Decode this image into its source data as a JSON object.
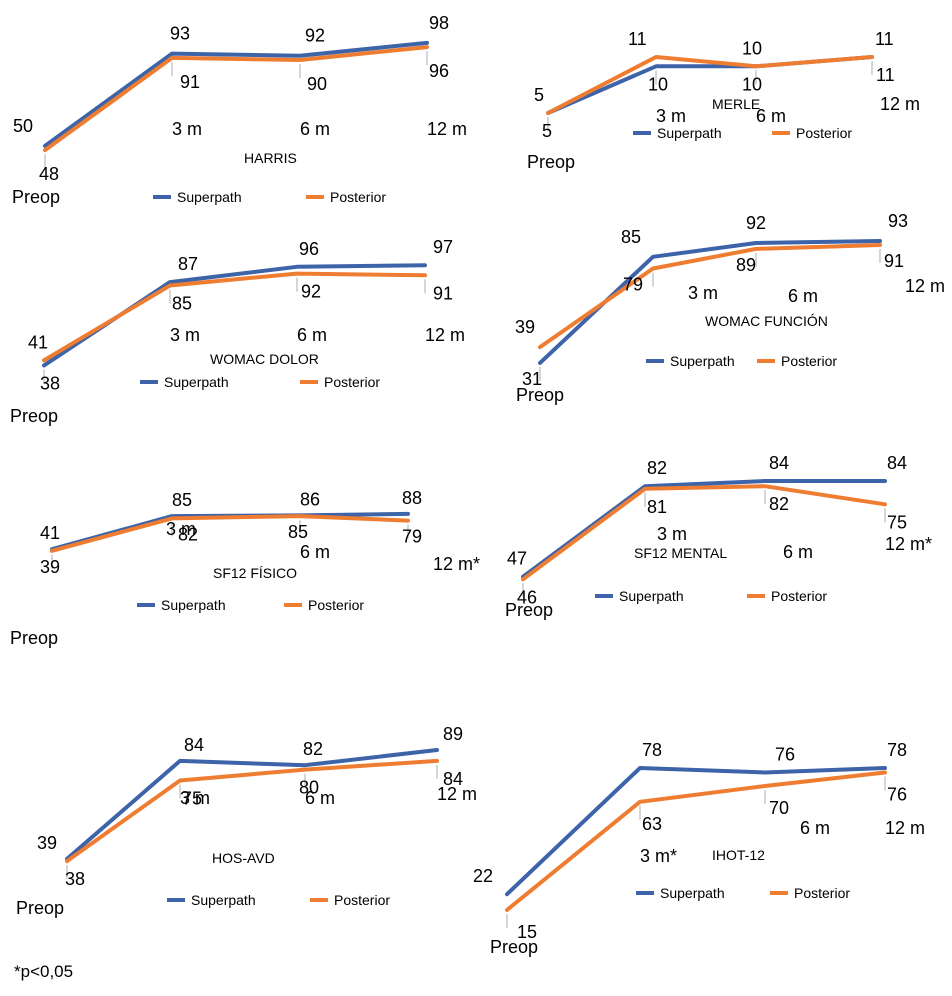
{
  "colors": {
    "superpath": "#3d63a8",
    "posterior": "#ef7d31",
    "text": "#000000",
    "tick": "#c8c8c8"
  },
  "footnote": "*p<0,05",
  "chart_data": [
    {
      "type": "line",
      "title": "HARRIS",
      "categories": [
        "Preop",
        "3 m",
        "6 m",
        "12 m"
      ],
      "series": [
        {
          "name": "Superpath",
          "values": [
            50,
            93,
            92,
            98
          ]
        },
        {
          "name": "Posterior",
          "values": [
            48,
            91,
            90,
            96
          ]
        }
      ],
      "legend": "bottom"
    },
    {
      "type": "line",
      "title": "MERLE",
      "categories": [
        "Preop",
        "3 m",
        "6 m",
        "12 m"
      ],
      "series": [
        {
          "name": "Superpath",
          "values": [
            5,
            10,
            10,
            11
          ]
        },
        {
          "name": "Posterior",
          "values": [
            5,
            11,
            10,
            11
          ]
        }
      ],
      "legend": "bottom"
    },
    {
      "type": "line",
      "title": "WOMAC DOLOR",
      "categories": [
        "Preop",
        "3 m",
        "6 m",
        "12 m"
      ],
      "series": [
        {
          "name": "Superpath",
          "values": [
            38,
            87,
            96,
            97
          ]
        },
        {
          "name": "Posterior",
          "values": [
            41,
            85,
            92,
            91
          ]
        }
      ],
      "legend": "bottom"
    },
    {
      "type": "line",
      "title": "WOMAC FUNCIÓN",
      "categories": [
        "Preop",
        "3 m",
        "6 m",
        "12 m"
      ],
      "series": [
        {
          "name": "Superpath",
          "values": [
            31,
            85,
            92,
            93
          ]
        },
        {
          "name": "Posterior",
          "values": [
            39,
            79,
            89,
            91
          ]
        }
      ],
      "legend": "bottom"
    },
    {
      "type": "line",
      "title": "SF12 FÍSICO",
      "categories": [
        "Preop",
        "3 m",
        "6 m",
        "12 m*"
      ],
      "series": [
        {
          "name": "Superpath",
          "values": [
            41,
            85,
            86,
            88
          ]
        },
        {
          "name": "Posterior",
          "values": [
            39,
            82,
            85,
            79
          ]
        }
      ],
      "legend": "bottom"
    },
    {
      "type": "line",
      "title": "SF12 MENTAL",
      "categories": [
        "Preop",
        "3 m",
        "6 m",
        "12 m*"
      ],
      "series": [
        {
          "name": "Superpath",
          "values": [
            47,
            82,
            84,
            84
          ]
        },
        {
          "name": "Posterior",
          "values": [
            46,
            81,
            82,
            75
          ]
        }
      ],
      "legend": "bottom"
    },
    {
      "type": "line",
      "title": "HOS-AVD",
      "categories": [
        "Preop",
        "3 m",
        "6 m",
        "12 m"
      ],
      "series": [
        {
          "name": "Superpath",
          "values": [
            39,
            84,
            82,
            89
          ]
        },
        {
          "name": "Posterior",
          "values": [
            38,
            75,
            80,
            84
          ]
        }
      ],
      "legend": "bottom"
    },
    {
      "type": "line",
      "title": "IHOT-12",
      "categories": [
        "Preop",
        "3 m*",
        "6 m",
        "12 m"
      ],
      "series": [
        {
          "name": "Superpath",
          "values": [
            22,
            78,
            76,
            78
          ]
        },
        {
          "name": "Posterior",
          "values": [
            15,
            63,
            70,
            76
          ]
        }
      ],
      "legend": "bottom"
    }
  ]
}
